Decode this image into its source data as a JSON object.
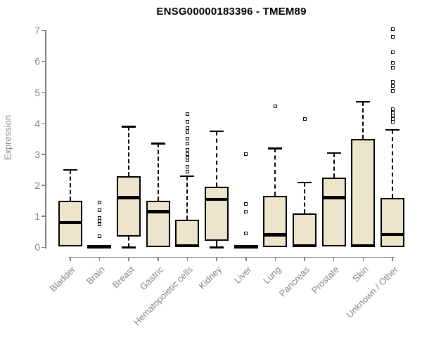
{
  "chart_data": {
    "type": "boxplot",
    "title": "ENSG00000183396 - TMEM89",
    "ylabel": "Expression",
    "ylim": [
      0,
      7
    ],
    "yticks": [
      0,
      1,
      2,
      3,
      4,
      5,
      6,
      7
    ],
    "grid": false,
    "categories": [
      "Bladder",
      "Brain",
      "Breast",
      "Gastric",
      "Hematopoietic cells",
      "Kidney",
      "Liver",
      "Lung",
      "Pancreas",
      "Prostate",
      "Skin",
      "Unknown / Other"
    ],
    "boxes": [
      {
        "label": "Bladder",
        "whisker_low": 0.02,
        "q1": 0.02,
        "median": 0.8,
        "q3": 1.5,
        "whisker_high": 2.5,
        "outliers": []
      },
      {
        "label": "Brain",
        "whisker_low": 0,
        "q1": 0,
        "median": 0.03,
        "q3": 0.06,
        "whisker_high": 0.06,
        "outliers": [
          1.45,
          1.2,
          0.95,
          0.85,
          0.75,
          0.35
        ]
      },
      {
        "label": "Breast",
        "whisker_low": 0,
        "q1": 0.35,
        "median": 1.6,
        "q3": 2.3,
        "whisker_high": 3.9,
        "outliers": []
      },
      {
        "label": "Gastric",
        "whisker_low": 0,
        "q1": 0,
        "median": 1.15,
        "q3": 1.5,
        "whisker_high": 3.35,
        "outliers": []
      },
      {
        "label": "Hematopoietic cells",
        "whisker_low": 0,
        "q1": 0,
        "median": 0.05,
        "q3": 0.88,
        "whisker_high": 2.3,
        "outliers": [
          4.3,
          4.05,
          3.85,
          3.7,
          3.5,
          3.35,
          3.15,
          3.0,
          2.9,
          2.8,
          2.6,
          2.45
        ]
      },
      {
        "label": "Kidney",
        "whisker_low": 0,
        "q1": 0.2,
        "median": 1.55,
        "q3": 1.95,
        "whisker_high": 3.75,
        "outliers": []
      },
      {
        "label": "Liver",
        "whisker_low": 0,
        "q1": 0,
        "median": 0.03,
        "q3": 0.06,
        "whisker_high": 0.06,
        "outliers": [
          3.0,
          1.4,
          1.15,
          0.45
        ]
      },
      {
        "label": "Lung",
        "whisker_low": 0,
        "q1": 0,
        "median": 0.4,
        "q3": 1.65,
        "whisker_high": 3.2,
        "outliers": [
          4.55
        ]
      },
      {
        "label": "Pancreas",
        "whisker_low": 0,
        "q1": 0,
        "median": 0.05,
        "q3": 1.1,
        "whisker_high": 2.1,
        "outliers": [
          4.15
        ]
      },
      {
        "label": "Prostate",
        "whisker_low": 0.02,
        "q1": 0.02,
        "median": 1.6,
        "q3": 2.25,
        "whisker_high": 3.05,
        "outliers": []
      },
      {
        "label": "Skin",
        "whisker_low": 0,
        "q1": 0,
        "median": 0.05,
        "q3": 3.5,
        "whisker_high": 4.7,
        "outliers": []
      },
      {
        "label": "Unknown / Other",
        "whisker_low": 0,
        "q1": 0,
        "median": 0.42,
        "q3": 1.6,
        "whisker_high": 3.8,
        "outliers": [
          7.05,
          6.8,
          6.3,
          5.95,
          5.8,
          5.35,
          5.2,
          5.05,
          4.45,
          4.35,
          4.25,
          4.15,
          4.05
        ]
      }
    ],
    "colors": {
      "box_fill": "#ece5cb",
      "box_border": "#000000",
      "median": "#000000",
      "whisker": "#000000",
      "outlier_border": "#000000",
      "outlier_fill": "#ffffff",
      "axis": "#7f7f7f",
      "tick_label": "#858585",
      "title": "#000000"
    }
  }
}
